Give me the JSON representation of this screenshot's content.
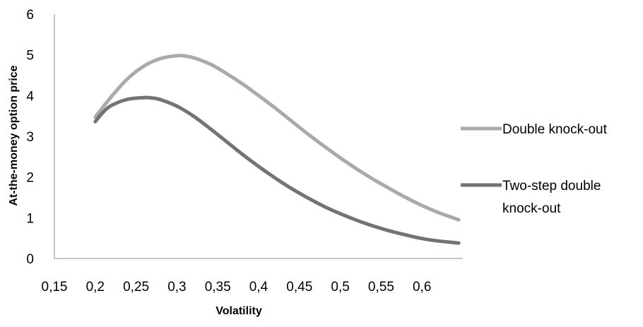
{
  "chart_data": {
    "type": "line",
    "title": "",
    "xlabel": "Volatility",
    "ylabel": "At-the-money option price",
    "xlim": [
      0.15,
      0.65
    ],
    "ylim": [
      0,
      6
    ],
    "x_ticks": [
      "0,15",
      "0,2",
      "0,25",
      "0,3",
      "0,35",
      "0,4",
      "0,45",
      "0,5",
      "0,55",
      "0,6"
    ],
    "y_ticks": [
      "0",
      "1",
      "2",
      "3",
      "4",
      "5",
      "6"
    ],
    "grid": false,
    "legend_position": "right",
    "series": [
      {
        "name": "Double knock-out",
        "color": "#aaaaaa",
        "x": [
          0.2,
          0.22,
          0.24,
          0.26,
          0.28,
          0.3,
          0.31,
          0.32,
          0.34,
          0.36,
          0.38,
          0.4,
          0.42,
          0.44,
          0.46,
          0.48,
          0.5,
          0.52,
          0.54,
          0.56,
          0.58,
          0.6,
          0.62,
          0.645
        ],
        "values": [
          3.47,
          3.98,
          4.42,
          4.73,
          4.91,
          4.98,
          4.97,
          4.93,
          4.78,
          4.55,
          4.29,
          4.0,
          3.7,
          3.38,
          3.06,
          2.76,
          2.47,
          2.2,
          1.95,
          1.72,
          1.5,
          1.3,
          1.13,
          0.95
        ]
      },
      {
        "name": "Two-step double knock-out",
        "color": "#737373",
        "x": [
          0.2,
          0.21,
          0.22,
          0.24,
          0.26,
          0.27,
          0.28,
          0.3,
          0.32,
          0.34,
          0.36,
          0.38,
          0.4,
          0.42,
          0.44,
          0.46,
          0.48,
          0.5,
          0.52,
          0.54,
          0.56,
          0.58,
          0.6,
          0.62,
          0.645
        ],
        "values": [
          3.36,
          3.6,
          3.76,
          3.91,
          3.95,
          3.94,
          3.9,
          3.74,
          3.5,
          3.2,
          2.88,
          2.56,
          2.26,
          1.98,
          1.72,
          1.49,
          1.28,
          1.1,
          0.94,
          0.8,
          0.68,
          0.58,
          0.49,
          0.43,
          0.38
        ]
      }
    ],
    "legend": [
      "Double knock-out",
      "Two-step double\nknock-out"
    ],
    "legend_lines": [
      [
        "Double knock-out"
      ],
      [
        "Two-step double",
        "knock-out"
      ]
    ]
  }
}
